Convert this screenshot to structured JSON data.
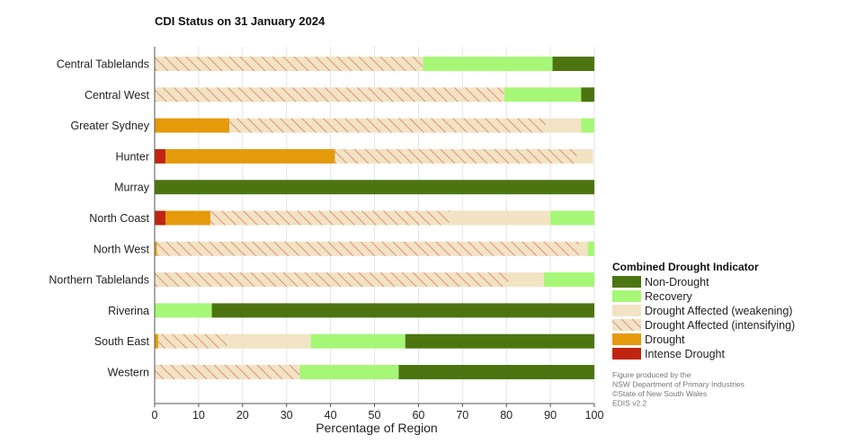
{
  "chart_data": {
    "type": "bar",
    "orientation": "horizontal",
    "stacked": true,
    "title": "CDI Status on 31 January 2024",
    "xlabel": "Percentage of Region",
    "ylabel": "",
    "xlim": [
      0,
      100
    ],
    "xticks": [
      "0",
      "10",
      "20",
      "30",
      "40",
      "50",
      "60",
      "70",
      "80",
      "90",
      "100"
    ],
    "categories": [
      "Central Tablelands",
      "Central West",
      "Greater Sydney",
      "Hunter",
      "Murray",
      "North Coast",
      "North West",
      "Northern Tablelands",
      "Riverina",
      "South East",
      "Western"
    ],
    "series": [
      {
        "name": "Intense Drought",
        "color": "#c0250f",
        "pattern": "solid",
        "values": [
          0,
          0,
          0,
          2.5,
          0,
          2.5,
          0,
          0,
          0,
          0,
          0
        ]
      },
      {
        "name": "Drought",
        "color": "#e59a0b",
        "pattern": "solid",
        "values": [
          0,
          0,
          17,
          38.5,
          0,
          10.2,
          0.5,
          0,
          0,
          0.8,
          0
        ]
      },
      {
        "name": "Drought Affected (intensifying)",
        "color": "#f2e3c4",
        "pattern": "hatched",
        "values": [
          61,
          79.5,
          72,
          55,
          0,
          54.3,
          96,
          80.5,
          0,
          15.7,
          33
        ]
      },
      {
        "name": "Drought Affected (weakening)",
        "color": "#f2e3c4",
        "pattern": "solid",
        "values": [
          0,
          0,
          8,
          3.7,
          0,
          23,
          2,
          8,
          0,
          19,
          0
        ]
      },
      {
        "name": "Recovery",
        "color": "#a6f777",
        "pattern": "solid",
        "values": [
          29.5,
          17.5,
          3,
          0,
          0,
          10,
          1.5,
          11.5,
          13,
          21.5,
          22.5
        ]
      },
      {
        "name": "Non-Drought",
        "color": "#4c7512",
        "pattern": "solid",
        "values": [
          9.5,
          3,
          0,
          0,
          100,
          0,
          0,
          0,
          87,
          43,
          44.5
        ]
      }
    ],
    "legend": {
      "title": "Combined Drought Indicator",
      "placement": "right",
      "items": [
        {
          "label": "Non-Drought",
          "color": "#4c7512",
          "pattern": "solid"
        },
        {
          "label": "Recovery",
          "color": "#a6f777",
          "pattern": "solid"
        },
        {
          "label": "Drought Affected (weakening)",
          "color": "#f2e3c4",
          "pattern": "solid"
        },
        {
          "label": "Drought Affected (intensifying)",
          "color": "#f2e3c4",
          "pattern": "hatched"
        },
        {
          "label": "Drought",
          "color": "#e59a0b",
          "pattern": "solid"
        },
        {
          "label": "Intense Drought",
          "color": "#c0250f",
          "pattern": "solid"
        }
      ]
    },
    "grid": "vertical",
    "credits": [
      "Figure produced by the",
      "NSW Department of Primary Industries",
      "©State of New South Wales",
      "EDIS v2.2"
    ]
  }
}
